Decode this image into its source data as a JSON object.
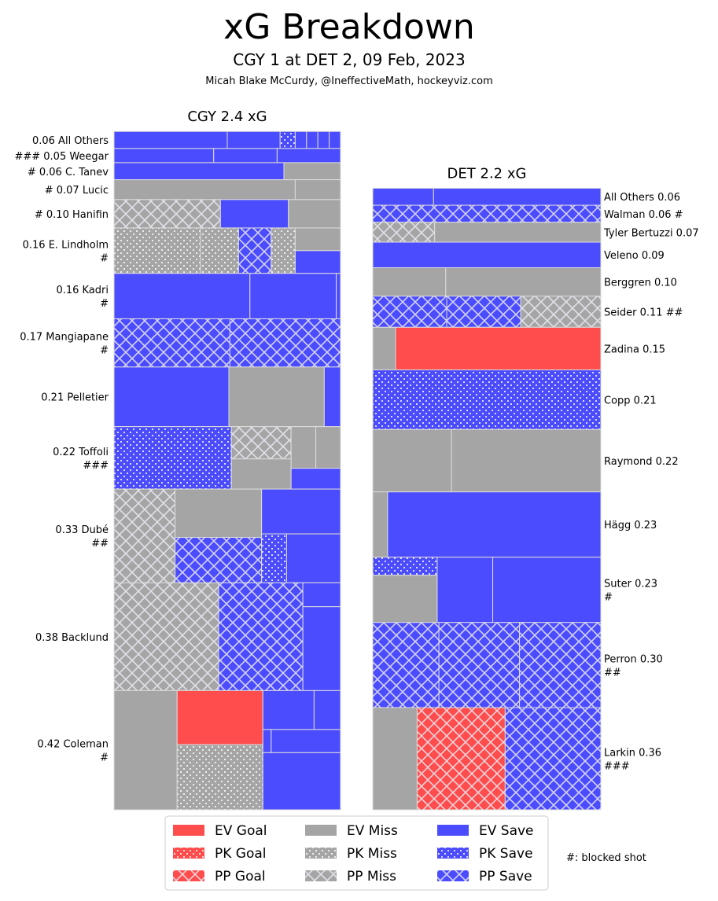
{
  "title": "xG Breakdown",
  "subtitle": "CGY 1 at DET 2, 09 Feb, 2023",
  "credit": "Micah Blake McCurdy, @IneffectiveMath, hockeyviz.com",
  "blocked_note": "#: blocked shot",
  "colors": {
    "goal": "#ff4c4c",
    "miss": "#a5a5a5",
    "save": "#4c4cff",
    "edge": "#dcdcdc"
  },
  "legend": [
    {
      "label": "EV Goal",
      "result": "goal",
      "strength": "EV"
    },
    {
      "label": "PK Goal",
      "result": "goal",
      "strength": "PK"
    },
    {
      "label": "PP Goal",
      "result": "goal",
      "strength": "PP"
    },
    {
      "label": "EV Miss",
      "result": "miss",
      "strength": "EV"
    },
    {
      "label": "PK Miss",
      "result": "miss",
      "strength": "PK"
    },
    {
      "label": "PP Miss",
      "result": "miss",
      "strength": "PP"
    },
    {
      "label": "EV Save",
      "result": "save",
      "strength": "EV"
    },
    {
      "label": "PK Save",
      "result": "save",
      "strength": "PK"
    },
    {
      "label": "PP Save",
      "result": "save",
      "strength": "PP"
    }
  ],
  "chart_data": {
    "type": "treemap",
    "value_unit": "xG",
    "teams": [
      {
        "title": "CGY 2.4 xG",
        "side": "left",
        "players": [
          {
            "label": [
              "0.06 All Others"
            ],
            "xg": 0.06,
            "shots": [
              [
                "save",
                "EV",
                0.03
              ],
              [
                "save",
                "EV",
                0.014
              ],
              [
                "save",
                "PK",
                0.004
              ],
              [
                "save",
                "EV",
                0.003
              ],
              [
                "save",
                "EV",
                0.003
              ],
              [
                "save",
                "EV",
                0.003
              ],
              [
                "save",
                "EV",
                0.003
              ]
            ]
          },
          {
            "label": [
              "### 0.05 Weegar"
            ],
            "xg": 0.05,
            "shots": [
              [
                "save",
                "EV",
                0.022
              ],
              [
                "save",
                "EV",
                0.014
              ],
              [
                "save",
                "EV",
                0.014
              ]
            ]
          },
          {
            "label": [
              "# 0.06 C. Tanev"
            ],
            "xg": 0.06,
            "shots": [
              [
                "save",
                "EV",
                0.045
              ],
              [
                "miss",
                "EV",
                0.015
              ]
            ]
          },
          {
            "label": [
              "# 0.07 Lucic"
            ],
            "xg": 0.07,
            "shots": [
              [
                "miss",
                "EV",
                0.056
              ],
              [
                "miss",
                "EV",
                0.014
              ]
            ]
          },
          {
            "label": [
              "# 0.10 Hanifin"
            ],
            "xg": 0.1,
            "shots": [
              [
                "miss",
                "PP",
                0.047
              ],
              [
                "save",
                "EV",
                0.03
              ],
              [
                "miss",
                "EV",
                0.023
              ]
            ]
          },
          {
            "label": [
              "0.16 E. Lindholm",
              "#"
            ],
            "xg": 0.16,
            "shots": [
              [
                "miss",
                "PK",
                0.061
              ],
              [
                "miss",
                "PK",
                0.027
              ],
              [
                "save",
                "PP",
                0.023
              ],
              [
                "miss",
                "PK",
                0.017
              ],
              [
                "miss",
                "EV",
                0.016
              ],
              [
                "save",
                "EV",
                0.016
              ]
            ]
          },
          {
            "label": [
              "0.16 Kadri",
              "#"
            ],
            "xg": 0.16,
            "shots": [
              [
                "save",
                "EV",
                0.096
              ],
              [
                "save",
                "EV",
                0.061
              ],
              [
                "save",
                "EV",
                0.003
              ]
            ]
          },
          {
            "label": [
              "0.17 Mangiapane",
              "#"
            ],
            "xg": 0.17,
            "shots": [
              [
                "save",
                "PP",
                0.087
              ],
              [
                "save",
                "PP",
                0.083
              ]
            ]
          },
          {
            "label": [
              "0.21 Pelletier"
            ],
            "xg": 0.21,
            "shots": [
              [
                "save",
                "EV",
                0.106
              ],
              [
                "miss",
                "EV",
                0.088
              ],
              [
                "save",
                "EV",
                0.015
              ]
            ]
          },
          {
            "label": [
              "0.22 Toffoli",
              "###"
            ],
            "xg": 0.22,
            "shots": [
              [
                "save",
                "PK",
                0.114
              ],
              [
                "miss",
                "PP",
                0.03
              ],
              [
                "miss",
                "EV",
                0.028
              ],
              [
                "miss",
                "EV",
                0.016
              ],
              [
                "miss",
                "EV",
                0.016
              ],
              [
                "save",
                "EV",
                0.016
              ]
            ]
          },
          {
            "label": [
              "0.33 Dubé",
              "##"
            ],
            "xg": 0.33,
            "shots": [
              [
                "miss",
                "PP",
                0.089
              ],
              [
                "miss",
                "EV",
                0.065
              ],
              [
                "save",
                "PP",
                0.061
              ],
              [
                "save",
                "EV",
                0.055
              ],
              [
                "save",
                "PK",
                0.019
              ],
              [
                "save",
                "EV",
                0.041
              ]
            ]
          },
          {
            "label": [
              "0.38 Backlund"
            ],
            "xg": 0.38,
            "shots": [
              [
                "miss",
                "PP",
                0.175
              ],
              [
                "save",
                "PP",
                0.141
              ],
              [
                "save",
                "EV",
                0.014
              ],
              [
                "save",
                "EV",
                0.049
              ]
            ]
          },
          {
            "label": [
              "0.42 Coleman",
              "#"
            ],
            "xg": 0.42,
            "shots": [
              [
                "miss",
                "EV",
                0.117
              ],
              [
                "goal",
                "EV",
                0.072
              ],
              [
                "miss",
                "PK",
                0.087
              ],
              [
                "save",
                "EV",
                0.031
              ],
              [
                "save",
                "EV",
                0.016
              ],
              [
                "save",
                "EV",
                0.003
              ],
              [
                "save",
                "EV",
                0.025
              ],
              [
                "save",
                "EV",
                0.069
              ]
            ]
          }
        ]
      },
      {
        "title": "DET 2.2 xG",
        "side": "right",
        "players": [
          {
            "label": [
              "All Others 0.06"
            ],
            "xg": 0.06,
            "shots": [
              [
                "save",
                "EV",
                0.016
              ],
              [
                "save",
                "EV",
                0.044
              ]
            ]
          },
          {
            "label": [
              "Walman 0.06 #"
            ],
            "xg": 0.06,
            "shots": [
              [
                "save",
                "PP",
                0.06
              ]
            ]
          },
          {
            "label": [
              "Tyler Bertuzzi 0.07"
            ],
            "xg": 0.07,
            "shots": [
              [
                "miss",
                "PP",
                0.019
              ],
              [
                "miss",
                "EV",
                0.051
              ]
            ]
          },
          {
            "label": [
              "Veleno 0.09"
            ],
            "xg": 0.09,
            "shots": [
              [
                "save",
                "EV",
                0.09
              ]
            ]
          },
          {
            "label": [
              "Berggren 0.10"
            ],
            "xg": 0.1,
            "shots": [
              [
                "miss",
                "EV",
                0.032
              ],
              [
                "miss",
                "EV",
                0.068
              ]
            ]
          },
          {
            "label": [
              "Seider 0.11 ##"
            ],
            "xg": 0.11,
            "shots": [
              [
                "save",
                "PP",
                0.036
              ],
              [
                "save",
                "PP",
                0.036
              ],
              [
                "miss",
                "PP",
                0.039
              ]
            ]
          },
          {
            "label": [
              "Zadina 0.15"
            ],
            "xg": 0.15,
            "shots": [
              [
                "miss",
                "EV",
                0.015
              ],
              [
                "goal",
                "EV",
                0.135
              ]
            ]
          },
          {
            "label": [
              "Copp 0.21"
            ],
            "xg": 0.21,
            "shots": [
              [
                "save",
                "PK",
                0.21
              ]
            ]
          },
          {
            "label": [
              "Raymond 0.22"
            ],
            "xg": 0.22,
            "shots": [
              [
                "miss",
                "EV",
                0.076
              ],
              [
                "miss",
                "EV",
                0.144
              ]
            ]
          },
          {
            "label": [
              "Hägg 0.23"
            ],
            "xg": 0.23,
            "shots": [
              [
                "miss",
                "EV",
                0.015
              ],
              [
                "save",
                "EV",
                0.215
              ]
            ]
          },
          {
            "label": [
              "Suter 0.23",
              "#"
            ],
            "xg": 0.23,
            "shots": [
              [
                "save",
                "PK",
                0.018
              ],
              [
                "miss",
                "EV",
                0.047
              ],
              [
                "save",
                "EV",
                0.056
              ],
              [
                "save",
                "EV",
                0.109
              ]
            ]
          },
          {
            "label": [
              "Perron 0.30",
              "##"
            ],
            "xg": 0.3,
            "shots": [
              [
                "save",
                "PP",
                0.087
              ],
              [
                "save",
                "PP",
                0.106
              ],
              [
                "save",
                "PP",
                0.107
              ]
            ]
          },
          {
            "label": [
              "Larkin 0.36",
              "###"
            ],
            "xg": 0.36,
            "shots": [
              [
                "miss",
                "EV",
                0.07
              ],
              [
                "goal",
                "PP",
                0.139
              ],
              [
                "save",
                "PP",
                0.151
              ]
            ]
          }
        ]
      }
    ]
  }
}
